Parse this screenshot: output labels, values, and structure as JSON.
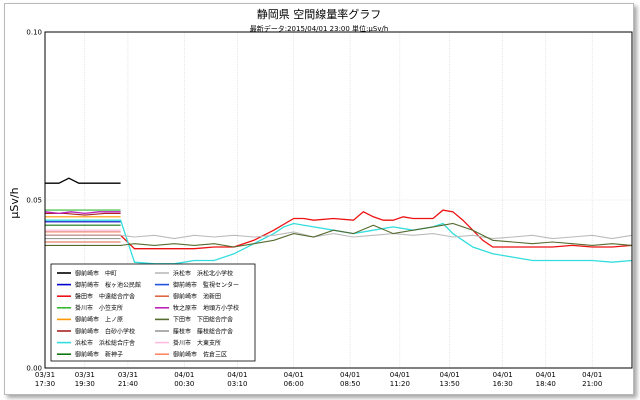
{
  "chart_data": {
    "type": "line",
    "title": "静岡県 空間線量率グラフ",
    "subtitle": "最新データ:2015/04/01 23:00 単位:μSv/h",
    "ylabel": "μSv/h",
    "xlabel": "",
    "ylim": [
      0,
      0.1
    ],
    "y_ticks": [
      0.0,
      0.05,
      0.1
    ],
    "y_tick_labels": [
      "0.00",
      "0.05",
      "0.10"
    ],
    "grid": true,
    "legend_position": "bottom-left",
    "x_ticks": [
      {
        "date": "03/31",
        "time": "17:30"
      },
      {
        "date": "03/31",
        "time": "19:30"
      },
      {
        "date": "03/31",
        "time": "21:40"
      },
      {
        "date": "04/01",
        "time": "00:30"
      },
      {
        "date": "04/01",
        "time": "03:10"
      },
      {
        "date": "04/01",
        "time": "06:00"
      },
      {
        "date": "04/01",
        "time": "08:50"
      },
      {
        "date": "04/01",
        "time": "11:20"
      },
      {
        "date": "04/01",
        "time": "13:50"
      },
      {
        "date": "04/01",
        "time": "16:30"
      },
      {
        "date": "04/01",
        "time": "18:40"
      },
      {
        "date": "04/01",
        "time": "21:00"
      }
    ],
    "x_tick_hours": [
      17.5,
      19.5,
      21.667,
      24.5,
      27.167,
      30,
      32.833,
      35.333,
      37.833,
      40.5,
      42.667,
      45
    ],
    "x_range_hours": [
      17.5,
      47.0
    ],
    "series": [
      {
        "name": "御前崎市　中町",
        "color": "#000000",
        "x": [
          17.5,
          18.2,
          18.7,
          19.2,
          20.1,
          21.3
        ],
        "y": [
          0.055,
          0.055,
          0.0565,
          0.055,
          0.055,
          0.055
        ]
      },
      {
        "name": "御前崎市　桜ヶ池公民館",
        "color": "#0000cc",
        "x": [
          17.5,
          18.5,
          19.5,
          20.5,
          21.3
        ],
        "y": [
          0.0435,
          0.0435,
          0.0435,
          0.0435,
          0.0435
        ]
      },
      {
        "name": "磐田市　中遠総合庁舎",
        "color": "#ee1111",
        "x": [
          17.5,
          18.5,
          19.5,
          20.5,
          21.3,
          22,
          23,
          24,
          25,
          26,
          27,
          28,
          29,
          30,
          30.5,
          31,
          32,
          33,
          33.5,
          34,
          34.5,
          35,
          35.5,
          36,
          37,
          37.5,
          38,
          38.5,
          39,
          39.5,
          40,
          41,
          42,
          43,
          44,
          45,
          46,
          47
        ],
        "y": [
          0.0395,
          0.0395,
          0.0395,
          0.0395,
          0.0395,
          0.0355,
          0.0355,
          0.0355,
          0.0355,
          0.036,
          0.036,
          0.038,
          0.041,
          0.0445,
          0.0445,
          0.044,
          0.0445,
          0.044,
          0.0465,
          0.045,
          0.044,
          0.044,
          0.045,
          0.0445,
          0.0445,
          0.047,
          0.0465,
          0.044,
          0.041,
          0.038,
          0.036,
          0.036,
          0.036,
          0.036,
          0.0365,
          0.036,
          0.036,
          0.0365
        ]
      },
      {
        "name": "掛川市　小笠支所",
        "color": "#33bb33",
        "x": [
          17.5,
          18.5,
          19.5,
          20.5,
          21.3
        ],
        "y": [
          0.047,
          0.047,
          0.047,
          0.047,
          0.047
        ]
      },
      {
        "name": "御前崎市　上ノ原",
        "color": "#ff9900",
        "x": [
          17.5,
          18.5,
          19.5,
          20.5,
          21.3
        ],
        "y": [
          0.045,
          0.045,
          0.045,
          0.045,
          0.045
        ]
      },
      {
        "name": "御前崎市　白砂小学校",
        "color": "#aa2222",
        "x": [
          17.5,
          18.5,
          19.5,
          20.5,
          21.3
        ],
        "y": [
          0.046,
          0.046,
          0.0455,
          0.046,
          0.046
        ]
      },
      {
        "name": "浜松市　浜松総合庁舎",
        "color": "#33dddd",
        "x": [
          17.5,
          18.5,
          19.5,
          20.5,
          21.3,
          22,
          23,
          24,
          25,
          26,
          27,
          28,
          29,
          29.5,
          30,
          31,
          32,
          33,
          34,
          35,
          36,
          37,
          37.5,
          38,
          39,
          40,
          41,
          42,
          43,
          44,
          45,
          46,
          47
        ],
        "y": [
          0.044,
          0.044,
          0.044,
          0.044,
          0.044,
          0.0315,
          0.031,
          0.031,
          0.032,
          0.032,
          0.034,
          0.037,
          0.04,
          0.042,
          0.043,
          0.042,
          0.041,
          0.04,
          0.041,
          0.042,
          0.041,
          0.042,
          0.043,
          0.04,
          0.036,
          0.034,
          0.033,
          0.032,
          0.032,
          0.032,
          0.032,
          0.0315,
          0.032
        ]
      },
      {
        "name": "御前崎市　新神子",
        "color": "#117711",
        "x": [
          17.5,
          18.5,
          19.5,
          20.5,
          21.3
        ],
        "y": [
          0.0425,
          0.0425,
          0.0425,
          0.0425,
          0.0425
        ]
      },
      {
        "name": "浜松市　浜松北小学校",
        "color": "#bbbbbb",
        "x": [
          17.5,
          18.5,
          19.5,
          20.5,
          21.3,
          22,
          23,
          24,
          25,
          26,
          27,
          28,
          29,
          30,
          31,
          32,
          33,
          34,
          35,
          36,
          37,
          38,
          39,
          40,
          41,
          42,
          43,
          44,
          45,
          46,
          47
        ],
        "y": [
          0.0395,
          0.0395,
          0.0395,
          0.0395,
          0.0395,
          0.039,
          0.0395,
          0.0385,
          0.0395,
          0.039,
          0.0395,
          0.039,
          0.0395,
          0.0405,
          0.039,
          0.04,
          0.039,
          0.0395,
          0.04,
          0.0395,
          0.04,
          0.039,
          0.0395,
          0.0385,
          0.039,
          0.0395,
          0.0385,
          0.039,
          0.0395,
          0.0385,
          0.0395
        ]
      },
      {
        "name": "御前崎市　監視センター",
        "color": "#2255dd",
        "x": [
          17.5,
          18.5,
          19.5,
          20.5,
          21.3
        ],
        "y": [
          0.0405,
          0.0405,
          0.0405,
          0.0405,
          0.0405
        ]
      },
      {
        "name": "御前崎市　池新田",
        "color": "#dd6644",
        "x": [
          17.5,
          18.5,
          19.5,
          20.5,
          21.3
        ],
        "y": [
          0.0375,
          0.0375,
          0.0375,
          0.0375,
          0.0375
        ]
      },
      {
        "name": "牧之原市　地頭方小学校",
        "color": "#bb22bb",
        "x": [
          17.5,
          18.2,
          18.8,
          19.5,
          20.2,
          21.3
        ],
        "y": [
          0.0465,
          0.046,
          0.0465,
          0.046,
          0.0465,
          0.0465
        ]
      },
      {
        "name": "下田市　下田総合庁舎",
        "color": "#556b2f",
        "x": [
          17.5,
          18.5,
          19.5,
          20.5,
          21.3,
          22,
          23,
          24,
          25,
          26,
          27,
          28,
          29,
          30,
          31,
          32,
          33,
          34,
          35,
          36,
          37,
          38,
          39,
          40,
          41,
          42,
          43,
          44,
          45,
          46,
          47
        ],
        "y": [
          0.0365,
          0.0365,
          0.0365,
          0.0365,
          0.0365,
          0.037,
          0.0365,
          0.037,
          0.0365,
          0.037,
          0.036,
          0.037,
          0.038,
          0.04,
          0.039,
          0.041,
          0.04,
          0.0425,
          0.04,
          0.041,
          0.042,
          0.043,
          0.041,
          0.038,
          0.0375,
          0.037,
          0.0375,
          0.037,
          0.0365,
          0.037,
          0.0365
        ]
      },
      {
        "name": "藤枝市　藤枝総合庁舎",
        "color": "#999999",
        "x": [
          17.5,
          18.5,
          19.5,
          20.5,
          21.3
        ],
        "y": [
          0.0385,
          0.0385,
          0.0385,
          0.0385,
          0.0385
        ]
      },
      {
        "name": "掛川市　大東支所",
        "color": "#ffbbdd",
        "x": [
          17.5,
          18.5,
          19.5,
          20.5,
          21.3
        ],
        "y": [
          0.041,
          0.041,
          0.041,
          0.041,
          0.041
        ]
      },
      {
        "name": "御前崎市　佐倉三区",
        "color": "#ff8866",
        "x": [
          17.5,
          18.5,
          19.5,
          20.5,
          21.3
        ],
        "y": [
          0.0405,
          0.0405,
          0.0405,
          0.0405,
          0.0405
        ]
      }
    ]
  }
}
